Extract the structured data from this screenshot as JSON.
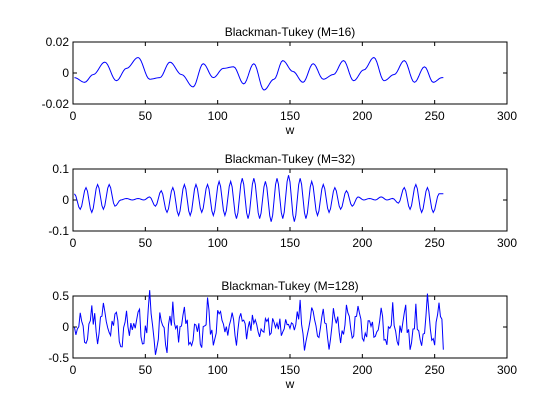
{
  "colors": {
    "line": "#0000ff",
    "axes": "#000000",
    "background": "#ffffff"
  },
  "chart_data": [
    {
      "type": "line",
      "title": "Blackman-Tukey (M=16)",
      "xlabel": "w",
      "ylabel": "",
      "xlim": [
        0,
        300
      ],
      "ylim": [
        -0.02,
        0.02
      ],
      "xticks": [
        0,
        50,
        100,
        150,
        200,
        250,
        300
      ],
      "xtick_labels": [
        "0",
        "50",
        "100",
        "150",
        "200",
        "250",
        "300"
      ],
      "yticks": [
        -0.02,
        0,
        0.02
      ],
      "ytick_labels": [
        "-0.02",
        "0",
        "0.02"
      ],
      "grid": false,
      "n_points": 256,
      "series": [
        {
          "color": "#0000ff",
          "x": [
            1,
            8,
            14,
            22,
            30,
            37,
            45,
            53,
            60,
            67,
            75,
            83,
            90,
            97,
            104,
            111,
            118,
            125,
            132,
            139,
            145,
            152,
            159,
            166,
            173,
            180,
            187,
            194,
            201,
            208,
            215,
            222,
            229,
            236,
            243,
            249,
            255
          ],
          "y": [
            -0.003,
            -0.006,
            -0.001,
            0.007,
            -0.005,
            0.003,
            0.01,
            -0.004,
            -0.003,
            0.007,
            -0.001,
            -0.009,
            0.006,
            -0.003,
            0.003,
            0.004,
            -0.007,
            0.006,
            -0.011,
            -0.004,
            0.008,
            0.001,
            -0.006,
            0.006,
            -0.004,
            -0.001,
            0.008,
            -0.005,
            0.002,
            0.01,
            -0.005,
            -0.001,
            0.008,
            -0.006,
            0.004,
            -0.006,
            -0.003
          ]
        }
      ]
    },
    {
      "type": "line",
      "title": "Blackman-Tukey (M=32)",
      "xlabel": "",
      "ylabel": "",
      "xlim": [
        0,
        300
      ],
      "ylim": [
        -0.1,
        0.1
      ],
      "xticks": [
        0,
        50,
        100,
        150,
        200,
        250,
        300
      ],
      "xtick_labels": [
        "0",
        "50",
        "100",
        "150",
        "200",
        "250",
        "300"
      ],
      "yticks": [
        -0.1,
        0,
        0.1
      ],
      "ytick_labels": [
        "-0.1",
        "0",
        "0.1"
      ],
      "grid": false,
      "n_points": 256,
      "series": [
        {
          "color": "#0000ff",
          "x": [
            1,
            5,
            9,
            13,
            17,
            21,
            25,
            29,
            33,
            37,
            41,
            45,
            49,
            53,
            57,
            61,
            65,
            69,
            73,
            77,
            81,
            85,
            89,
            93,
            97,
            101,
            105,
            109,
            113,
            117,
            121,
            125,
            129,
            133,
            137,
            141,
            145,
            149,
            153,
            157,
            161,
            165,
            169,
            173,
            177,
            181,
            185,
            189,
            193,
            197,
            201,
            205,
            209,
            213,
            217,
            221,
            225,
            229,
            233,
            237,
            241,
            245,
            249,
            253,
            256
          ],
          "y": [
            0.02,
            -0.03,
            0.04,
            -0.04,
            0.05,
            -0.03,
            0.05,
            -0.02,
            0.0,
            0.005,
            0.0,
            0.005,
            0.0,
            0.01,
            -0.02,
            0.03,
            -0.04,
            0.04,
            -0.05,
            0.05,
            -0.05,
            0.05,
            -0.04,
            0.05,
            -0.05,
            0.06,
            -0.05,
            0.06,
            -0.06,
            0.07,
            -0.06,
            0.07,
            -0.06,
            0.06,
            -0.07,
            0.07,
            -0.06,
            0.08,
            -0.07,
            0.07,
            -0.06,
            0.06,
            -0.05,
            0.05,
            -0.04,
            0.04,
            -0.03,
            0.03,
            -0.02,
            0.01,
            0.0,
            0.005,
            0.0,
            0.01,
            0.0,
            0.005,
            -0.01,
            0.04,
            -0.03,
            0.05,
            -0.04,
            0.04,
            -0.04,
            0.02,
            0.02
          ]
        }
      ]
    },
    {
      "type": "line",
      "title": "Blackman-Tukey (M=128)",
      "xlabel": "w",
      "ylabel": "",
      "xlim": [
        0,
        300
      ],
      "ylim": [
        -0.5,
        0.5
      ],
      "xticks": [
        0,
        50,
        100,
        150,
        200,
        250,
        300
      ],
      "xtick_labels": [
        "0",
        "50",
        "100",
        "150",
        "200",
        "250",
        "300"
      ],
      "yticks": [
        -0.5,
        0,
        0.5
      ],
      "ytick_labels": [
        "-0.5",
        "0",
        "0.5"
      ],
      "grid": false,
      "n_points": 256,
      "series": [
        {
          "color": "#0000ff",
          "x": [
            1,
            5,
            9,
            13,
            17,
            21,
            25,
            29,
            33,
            37,
            41,
            45,
            49,
            53,
            57,
            61,
            65,
            69,
            73,
            77,
            81,
            85,
            89,
            93,
            97,
            101,
            105,
            109,
            113,
            117,
            121,
            125,
            129,
            133,
            137,
            141,
            145,
            149,
            153,
            157,
            161,
            165,
            169,
            173,
            177,
            181,
            185,
            189,
            193,
            197,
            201,
            205,
            209,
            213,
            217,
            221,
            225,
            229,
            233,
            237,
            241,
            245,
            249,
            253,
            256
          ],
          "y": [
            -0.1,
            0.25,
            -0.3,
            0.35,
            -0.2,
            0.3,
            -0.25,
            0.2,
            -0.3,
            0.25,
            -0.2,
            0.3,
            -0.35,
            0.45,
            -0.3,
            0.2,
            -0.25,
            0.3,
            -0.2,
            0.25,
            -0.3,
            0.2,
            -0.25,
            0.35,
            -0.3,
            0.3,
            -0.2,
            0.25,
            -0.15,
            0.2,
            -0.1,
            0.1,
            -0.15,
            0.1,
            -0.05,
            0.15,
            -0.1,
            0.1,
            -0.15,
            0.3,
            -0.4,
            0.35,
            -0.3,
            0.4,
            -0.25,
            0.3,
            -0.3,
            0.25,
            -0.2,
            0.2,
            -0.25,
            0.2,
            -0.15,
            0.2,
            -0.3,
            0.3,
            -0.25,
            0.35,
            -0.3,
            0.25,
            -0.35,
            0.45,
            -0.3,
            0.3,
            -0.2
          ]
        }
      ]
    }
  ]
}
